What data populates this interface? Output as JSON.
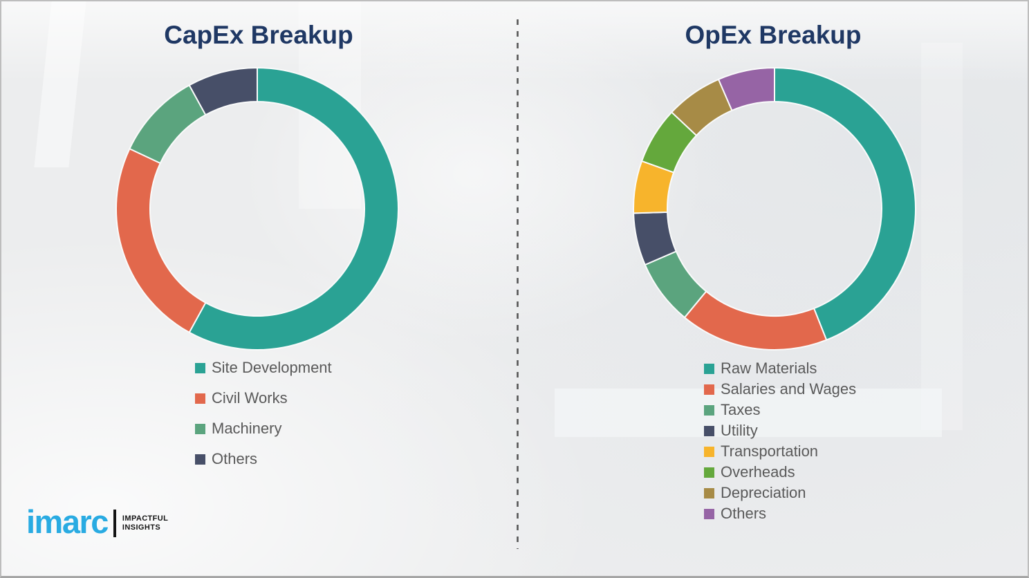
{
  "page": {
    "background_color": "#ECEDEE",
    "divider_color": "#555555",
    "title_color": "#1F3864",
    "legend_text_color": "#595959"
  },
  "brand": {
    "name": "imarc",
    "tagline_line1": "IMPACTFUL",
    "tagline_line2": "INSIGHTS",
    "name_color": "#29ABE2"
  },
  "chart_data": [
    {
      "type": "pie",
      "subtype": "donut",
      "title": "CapEx Breakup",
      "categories": [
        "Site Development",
        "Civil Works",
        "Machinery",
        "Others"
      ],
      "values": [
        58,
        24,
        10,
        8
      ],
      "unit": "percent (estimated from arc angles; no data labels shown)",
      "colors": [
        "#2AA294",
        "#E2684C",
        "#5BA47E",
        "#474F68"
      ],
      "start_angle_deg": 0,
      "direction": "clockwise",
      "legend_position": "below-left"
    },
    {
      "type": "pie",
      "subtype": "donut",
      "title": "OpEx Breakup",
      "categories": [
        "Raw Materials",
        "Salaries and Wages",
        "Taxes",
        "Utility",
        "Transportation",
        "Overheads",
        "Depreciation",
        "Others"
      ],
      "values": [
        44,
        17,
        7.5,
        6,
        6,
        6.5,
        6.5,
        6.5
      ],
      "unit": "percent (estimated from arc angles; no data labels shown)",
      "colors": [
        "#2AA294",
        "#E2684C",
        "#5BA47E",
        "#474F68",
        "#F7B42C",
        "#64A83C",
        "#A78B46",
        "#9664A5"
      ],
      "start_angle_deg": 0,
      "direction": "clockwise",
      "legend_position": "below-left"
    }
  ]
}
